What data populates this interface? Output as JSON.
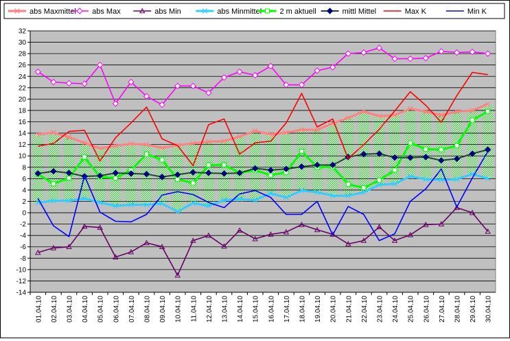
{
  "chart_data": {
    "type": "line",
    "title": "",
    "xlabel": "",
    "ylabel": "",
    "ylim": [
      -14,
      32
    ],
    "ytick_step": 2,
    "grid": true,
    "legend_position": "top",
    "plot_background": "#c0c0c0",
    "categories": [
      "01.04.10",
      "02.04.10",
      "03.04.10",
      "04.04.10",
      "05.04.10",
      "06.04.10",
      "07.04.10",
      "08.04.10",
      "09.04.10",
      "10.04.10",
      "11.04.10",
      "12.04.10",
      "13.04.10",
      "14.04.10",
      "15.04.10",
      "16.04.10",
      "17.04.10",
      "18.04.10",
      "19.04.10",
      "20.04.10",
      "21.04.10",
      "22.04.10",
      "23.04.10",
      "24.04.10",
      "25.04.10",
      "26.04.10",
      "27.04.10",
      "28.04.10",
      "29.04.10",
      "30.04.10"
    ],
    "series": [
      {
        "name": "abs Maxmittel",
        "color": "#ff8080",
        "marker": "x",
        "values": [
          13.8,
          14.1,
          13.3,
          12.3,
          11.3,
          11.8,
          12.1,
          12.0,
          11.4,
          11.9,
          12.2,
          12.5,
          12.6,
          13.4,
          14.4,
          13.8,
          14.1,
          14.6,
          14.6,
          15.7,
          16.7,
          17.8,
          17.0,
          17.2,
          18.3,
          17.8,
          17.2,
          17.8,
          18.0,
          19.1
        ]
      },
      {
        "name": "abs Max",
        "color": "#ff00ff",
        "marker": "diamond-open",
        "values": [
          24.8,
          23.0,
          22.8,
          22.7,
          26.0,
          19.2,
          23.0,
          20.5,
          19.0,
          22.3,
          22.3,
          21.1,
          23.8,
          24.8,
          24.2,
          25.8,
          22.5,
          22.5,
          25.0,
          25.6,
          28.0,
          28.2,
          29.0,
          27.1,
          27.1,
          27.2,
          28.4,
          28.2,
          28.3,
          28.0
        ]
      },
      {
        "name": "abs Min",
        "color": "#660066",
        "marker": "triangle-open",
        "values": [
          -7.0,
          -6.2,
          -6.0,
          -2.4,
          -2.6,
          -7.8,
          -6.9,
          -5.3,
          -6.0,
          -11.0,
          -4.9,
          -4.0,
          -5.9,
          -3.1,
          -4.6,
          -3.8,
          -3.4,
          -2.1,
          -3.0,
          -3.8,
          -5.5,
          -4.9,
          -2.5,
          -4.9,
          -3.9,
          -2.1,
          -2.0,
          0.9,
          0.0,
          -3.3
        ]
      },
      {
        "name": "abs Minmittel",
        "color": "#33ccff",
        "marker": "x",
        "values": [
          1.8,
          2.1,
          2.1,
          2.5,
          1.8,
          1.2,
          1.4,
          1.4,
          1.6,
          0.2,
          1.7,
          1.2,
          2.2,
          2.4,
          2.2,
          3.4,
          2.7,
          3.9,
          3.6,
          3.0,
          3.0,
          3.6,
          4.9,
          5.1,
          6.4,
          5.9,
          5.8,
          5.9,
          6.8,
          6.0
        ]
      },
      {
        "name": "2 m aktuell",
        "color": "#00ff00",
        "marker": "square-open",
        "values": [
          6.8,
          5.1,
          6.1,
          9.8,
          6.3,
          6.1,
          7.5,
          10.3,
          9.3,
          5.9,
          5.2,
          8.4,
          8.4,
          7.0,
          7.5,
          6.6,
          7.1,
          10.8,
          8.0,
          8.1,
          5.0,
          4.4,
          5.7,
          7.5,
          12.3,
          11.2,
          11.1,
          11.8,
          16.3,
          17.8
        ]
      },
      {
        "name": "mittl Mittel",
        "color": "#1a4a28",
        "marker": "diamond-filled",
        "marker_color": "#000080",
        "values": [
          6.9,
          7.3,
          7.0,
          6.4,
          6.5,
          7.0,
          6.9,
          6.8,
          6.3,
          6.7,
          7.1,
          7.0,
          6.9,
          7.0,
          7.8,
          7.5,
          7.7,
          8.1,
          8.4,
          8.4,
          9.8,
          10.3,
          10.4,
          9.7,
          9.7,
          9.8,
          9.2,
          9.5,
          10.4,
          11.1
        ]
      },
      {
        "name": "Max K",
        "color": "#ff0000",
        "marker": "none",
        "values": [
          11.7,
          12.2,
          14.3,
          14.5,
          9.1,
          13.2,
          15.8,
          18.6,
          13.0,
          11.8,
          8.3,
          15.5,
          16.5,
          10.3,
          12.3,
          12.6,
          15.8,
          21.0,
          15.1,
          16.5,
          9.5,
          12.0,
          14.7,
          17.9,
          21.3,
          18.9,
          15.9,
          20.6,
          24.7,
          24.3
        ]
      },
      {
        "name": "Min K",
        "color": "#0000ff",
        "marker": "none",
        "values": [
          2.5,
          -2.3,
          -4.2,
          6.5,
          0.1,
          -1.5,
          -1.6,
          -0.3,
          3.1,
          3.7,
          3.2,
          1.8,
          0.9,
          3.3,
          3.9,
          2.7,
          -0.3,
          -0.3,
          2.0,
          -3.9,
          1.1,
          -0.3,
          -4.9,
          -3.7,
          2.0,
          4.2,
          7.7,
          1.0,
          6.1,
          10.8
        ]
      }
    ]
  }
}
